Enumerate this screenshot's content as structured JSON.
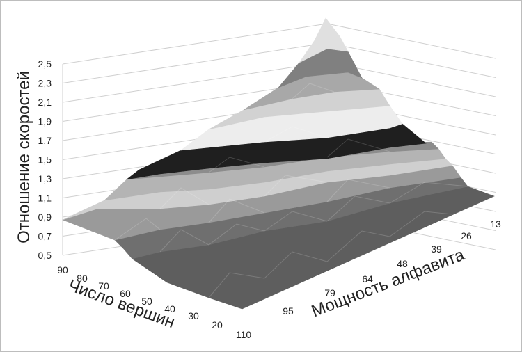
{
  "chart_data": {
    "type": "surface3d",
    "ylabel": "Отношение скоростей",
    "xlabel": "Число вершин",
    "zlabel": "Мощность алфавита",
    "yticks": [
      "0,5",
      "0,7",
      "0,9",
      "1,1",
      "1,3",
      "1,5",
      "1,7",
      "1,9",
      "2,1",
      "2,3",
      "2,5"
    ],
    "ylim": [
      0.5,
      2.5
    ],
    "x_ticks": [
      "90",
      "80",
      "70",
      "60",
      "50",
      "40",
      "30",
      "20",
      "110"
    ],
    "z_ticks": [
      "13",
      "26",
      "39",
      "48",
      "64",
      "79",
      "95"
    ],
    "grid": true,
    "band_colors": [
      "#5e5e5e",
      "#6f6f6f",
      "#9a9a9a",
      "#cfcfcf",
      "#b4b4b4",
      "#8c8c8c",
      "#1f1f1f",
      "#ededed",
      "#d2d2d2",
      "#a8a8a8",
      "#808080",
      "#e0e0e0"
    ]
  }
}
